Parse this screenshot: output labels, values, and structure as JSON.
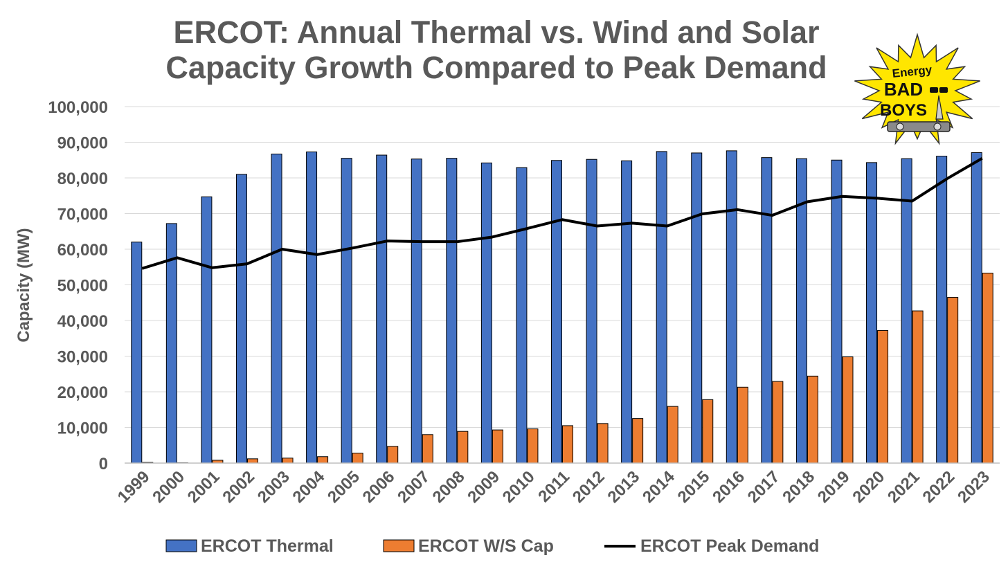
{
  "chart_data": {
    "type": "bar",
    "title_lines": [
      "ERCOT: Annual Thermal vs. Wind and Solar",
      "Capacity Growth Compared to Peak Demand"
    ],
    "ylabel": "Capacity (MW)",
    "xlabel": "",
    "ylim": [
      0,
      100000
    ],
    "yticks": [
      "0",
      "10,000",
      "20,000",
      "30,000",
      "40,000",
      "50,000",
      "60,000",
      "70,000",
      "80,000",
      "90,000",
      "100,000"
    ],
    "ytick_values": [
      0,
      10000,
      20000,
      30000,
      40000,
      50000,
      60000,
      70000,
      80000,
      90000,
      100000
    ],
    "grid": true,
    "legend_position": "bottom",
    "categories": [
      "1999",
      "2000",
      "2001",
      "2002",
      "2003",
      "2004",
      "2005",
      "2006",
      "2007",
      "2008",
      "2009",
      "2010",
      "2011",
      "2012",
      "2013",
      "2014",
      "2015",
      "2016",
      "2017",
      "2018",
      "2019",
      "2020",
      "2021",
      "2022",
      "2023"
    ],
    "series": [
      {
        "name": "ERCOT Thermal",
        "kind": "bar",
        "color": "#4472C4",
        "values": [
          62000,
          67200,
          74700,
          81000,
          86700,
          87300,
          85500,
          86400,
          85300,
          85500,
          84200,
          82900,
          84900,
          85200,
          84800,
          87400,
          87000,
          87600,
          85700,
          85400,
          85000,
          84300,
          85400,
          86100,
          87100
        ]
      },
      {
        "name": "ERCOT W/S Cap",
        "kind": "bar",
        "color": "#ED7D31",
        "values": [
          200,
          100,
          800,
          1200,
          1400,
          1800,
          2800,
          4700,
          8000,
          8900,
          9300,
          9600,
          10500,
          11100,
          12500,
          15900,
          17800,
          21300,
          22900,
          24400,
          29800,
          37200,
          42700,
          46500,
          53300
        ]
      },
      {
        "name": "ERCOT Peak Demand",
        "kind": "line",
        "color": "#000000",
        "values": [
          54600,
          57600,
          54800,
          55900,
          60000,
          58500,
          60300,
          62300,
          62100,
          62100,
          63400,
          65800,
          68300,
          66500,
          67300,
          66500,
          69900,
          71100,
          69500,
          73300,
          74800,
          74300,
          73500,
          79800,
          85500
        ]
      }
    ]
  },
  "logo": {
    "line1": "Energy",
    "line2": "BAD",
    "line3": "BOYS",
    "burst_color": "#FFE600"
  }
}
